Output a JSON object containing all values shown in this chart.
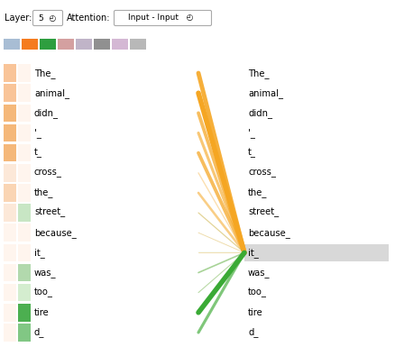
{
  "tokens": [
    "The_",
    "animal_",
    "didn_",
    "'_",
    "t_",
    "cross_",
    "the_",
    "street_",
    "because_",
    "it_",
    "was_",
    "too_",
    "tire",
    "d_"
  ],
  "n_tokens": 14,
  "target_token_idx": 9,
  "head_colors": [
    "#a8bdd4",
    "#f57c1f",
    "#2e9e3f",
    "#d4a0a0",
    "#c0b4c8",
    "#909090",
    "#d4b8d4",
    "#b8b8b8"
  ],
  "left_bar_colors_orange": [
    "#f9c498",
    "#f9c498",
    "#f5b87a",
    "#f5b87a",
    "#f5b87a",
    "#fce8d8",
    "#fad5b4",
    "#fce8d8",
    "#fff5ee",
    "#fff5ee",
    "#fff5ee",
    "#fff5ee",
    "#fff5ee",
    "#fff5ee"
  ],
  "left_bar_colors_green": [
    "#fff5ee",
    "#fff5ee",
    "#fff5ee",
    "#fff5ee",
    "#fff5ee",
    "#fff5ee",
    "#fff5ee",
    "#c8e6c4",
    "#fff5ee",
    "#fff5ee",
    "#b2d9ad",
    "#d4edcf",
    "#4caf50",
    "#81c784"
  ],
  "orange_line_weights": [
    0.28,
    0.32,
    0.22,
    0.18,
    0.22,
    0.08,
    0.15,
    0.08,
    0.06,
    0.06,
    0.04,
    0.03,
    0.02,
    0.02
  ],
  "green_line_weights": [
    0.01,
    0.01,
    0.01,
    0.01,
    0.01,
    0.01,
    0.01,
    0.04,
    0.02,
    0.03,
    0.12,
    0.08,
    0.38,
    0.22
  ],
  "orange_color": "#f5a623",
  "green_color": "#3aaa35",
  "bg_color": "#ffffff",
  "highlight_color": "#d8d8d8"
}
